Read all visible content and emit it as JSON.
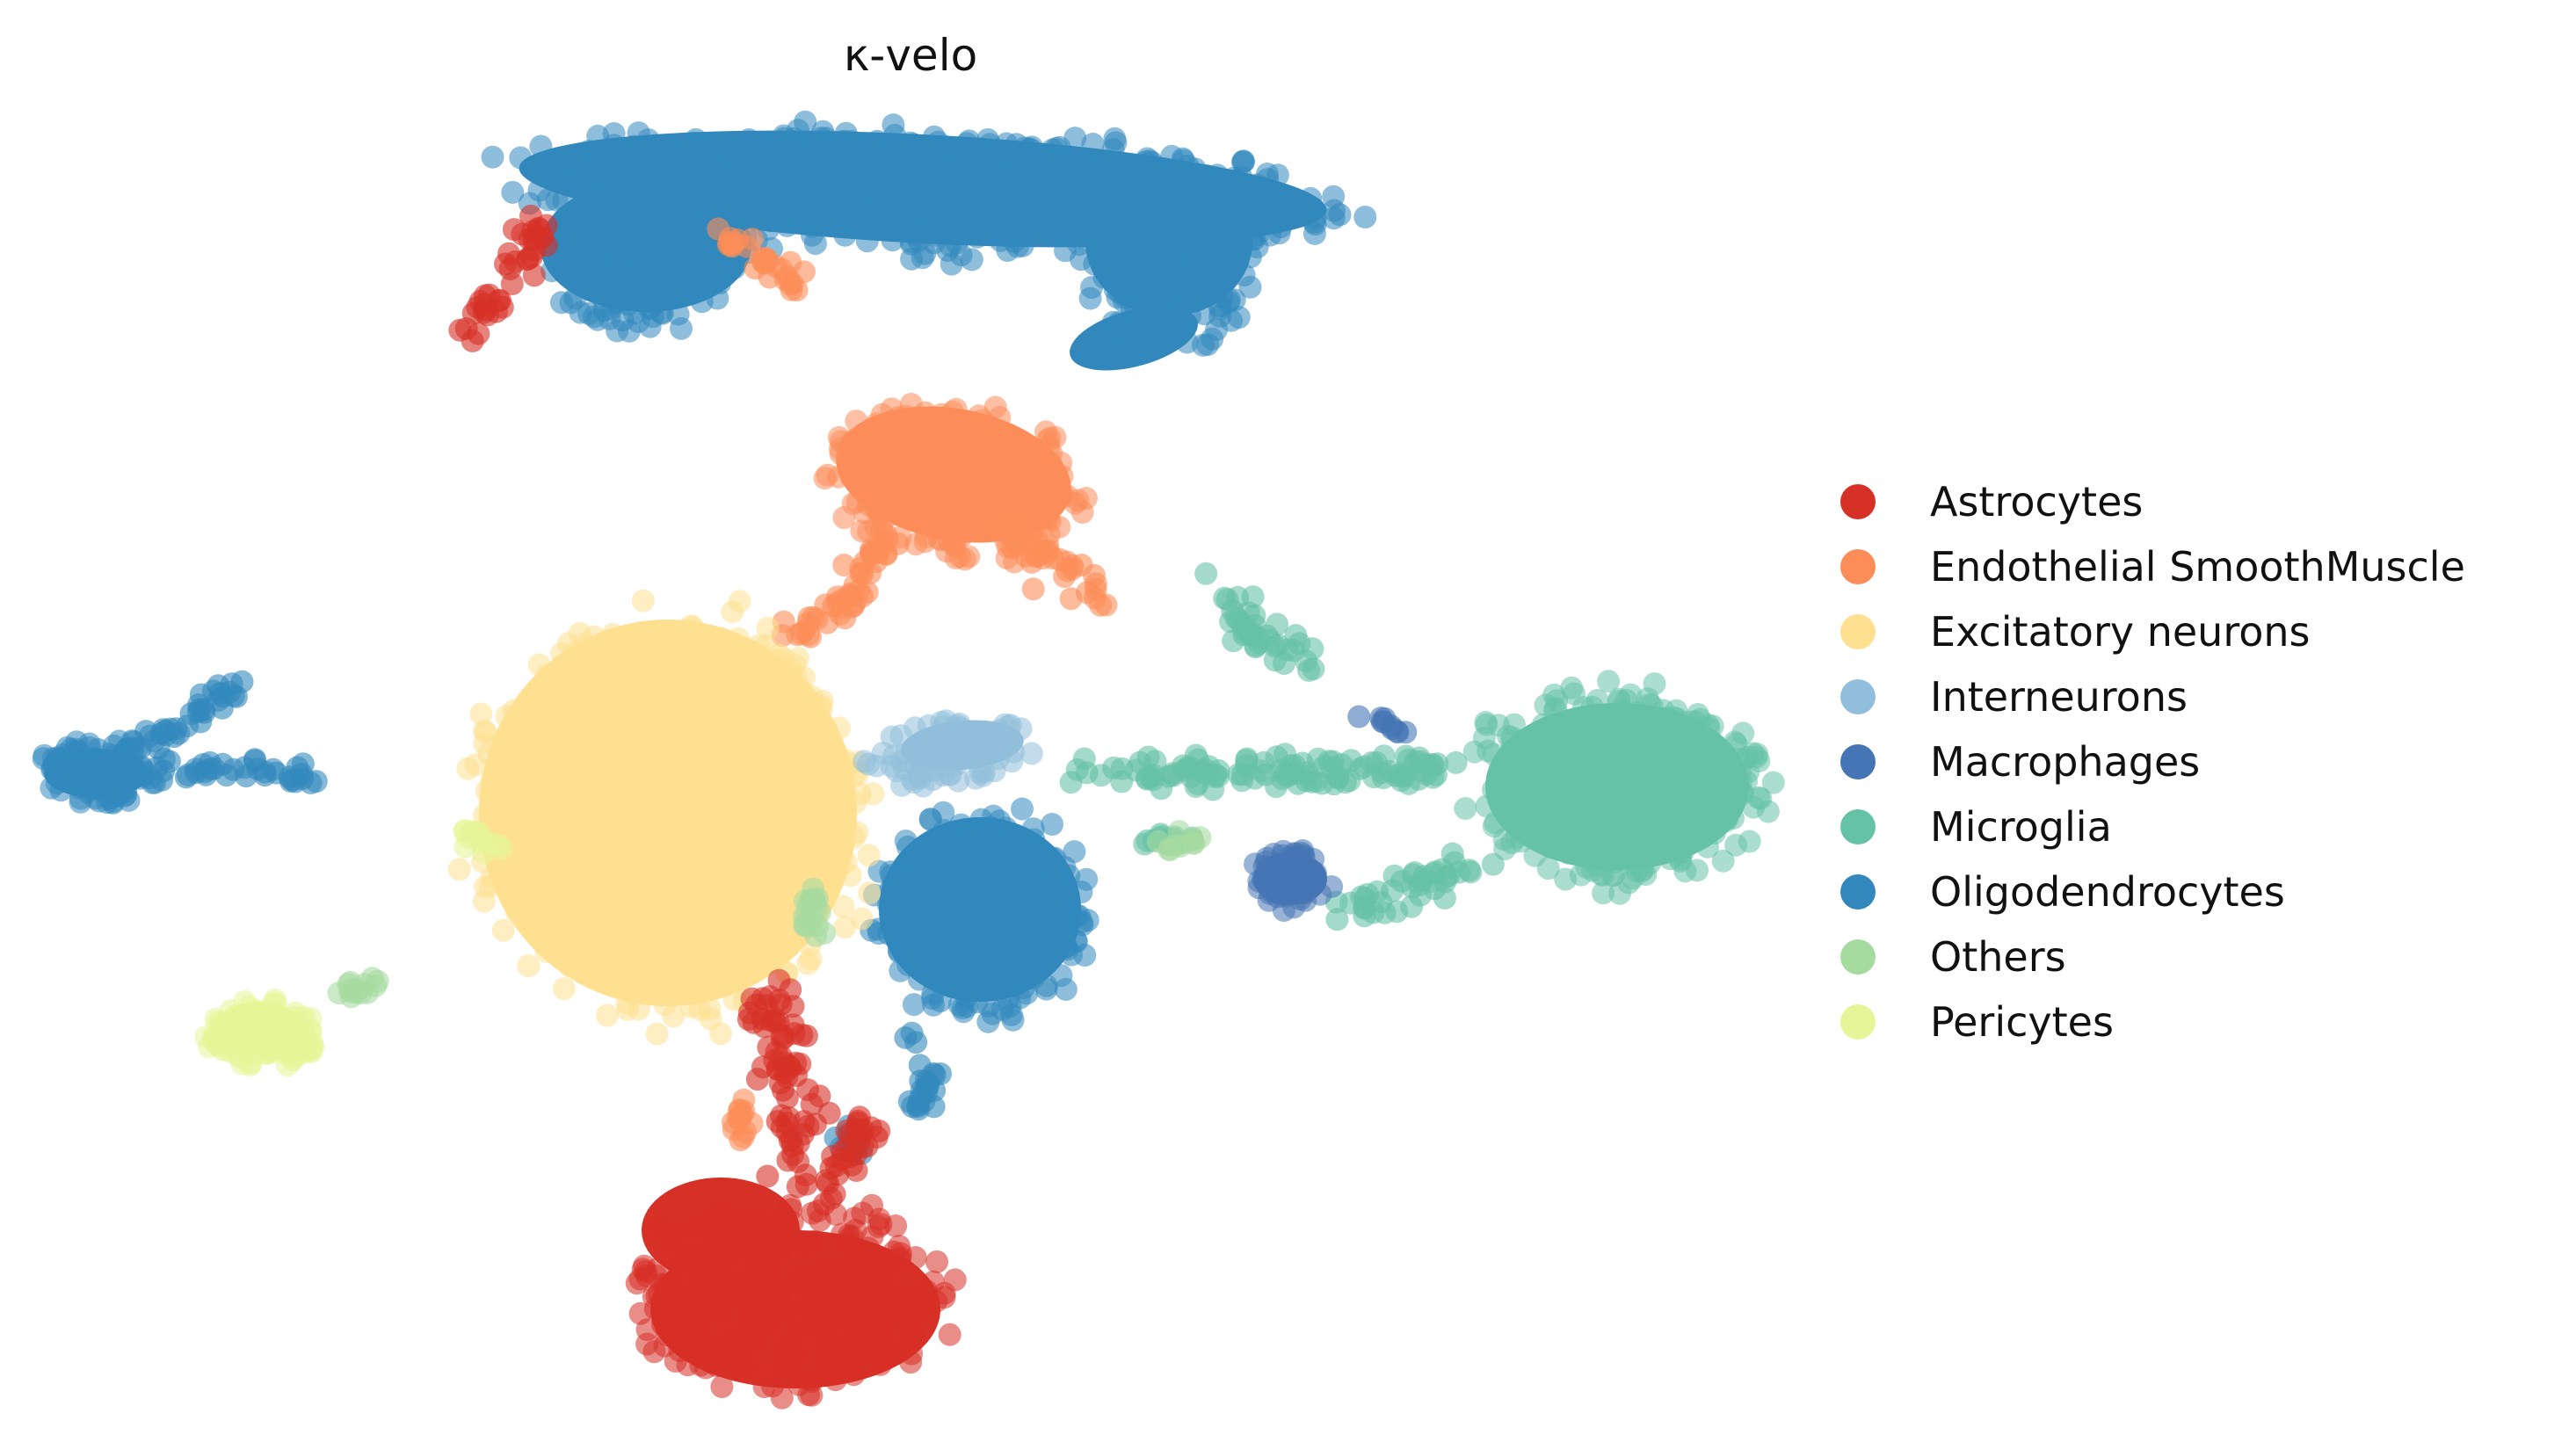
{
  "chart_data": {
    "type": "scatter",
    "title": "κ-velo",
    "xlabel": "",
    "ylabel": "",
    "axes_visible": false,
    "grid": false,
    "legend_position": "right",
    "series": [
      {
        "name": "Astrocytes",
        "color": "#d73027"
      },
      {
        "name": "Endothelial SmoothMuscle",
        "color": "#fc8d59"
      },
      {
        "name": "Excitatory neurons",
        "color": "#fee090"
      },
      {
        "name": "Interneurons",
        "color": "#91bfdb"
      },
      {
        "name": "Macrophages",
        "color": "#4575b4"
      },
      {
        "name": "Microglia",
        "color": "#66c2a5"
      },
      {
        "name": "Oligodendrocytes",
        "color": "#3288bd"
      },
      {
        "name": "Others",
        "color": "#a6dba0"
      },
      {
        "name": "Pericytes",
        "color": "#e6f598"
      }
    ]
  }
}
